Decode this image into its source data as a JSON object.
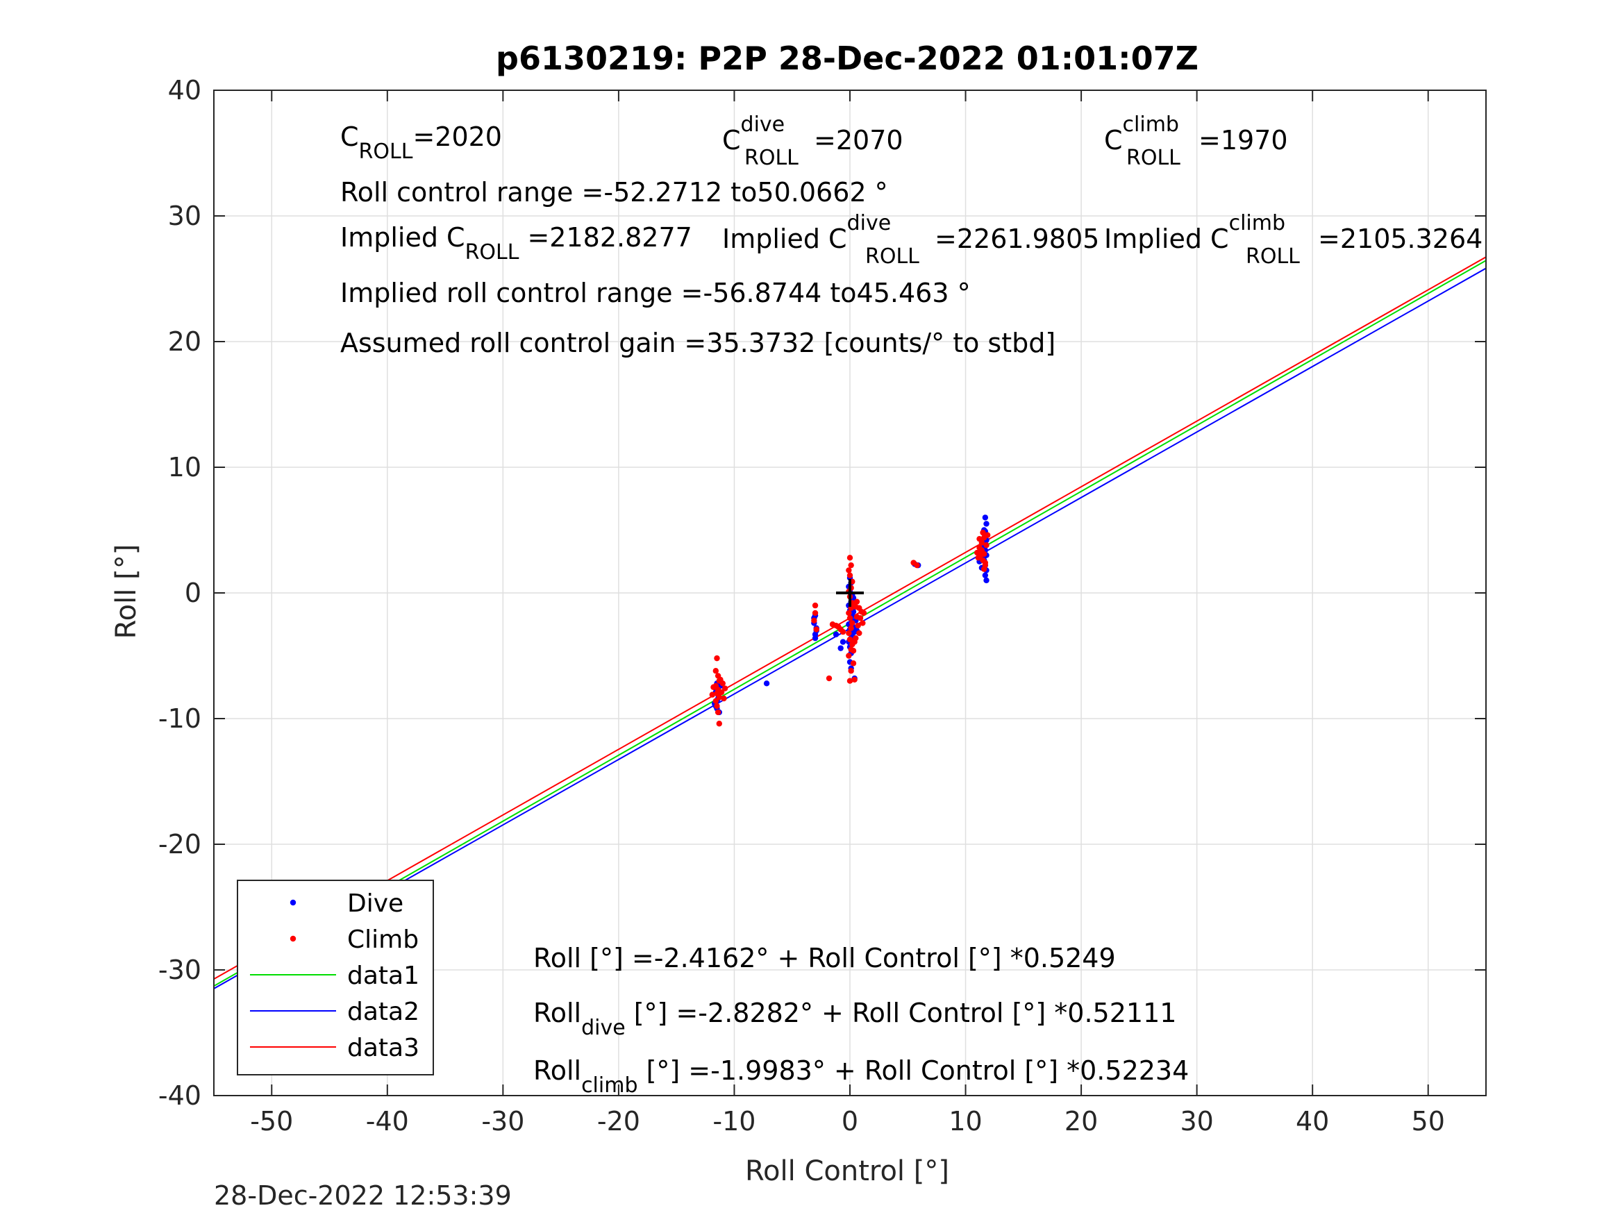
{
  "chart_data": {
    "type": "scatter",
    "title": "p6130219: P2P 28-Dec-2022 01:01:07Z",
    "xlabel": "Roll Control [°]",
    "ylabel": "Roll [°]",
    "xlim": [
      -55,
      55
    ],
    "ylim": [
      -40,
      40
    ],
    "xticks": [
      -50,
      -40,
      -30,
      -20,
      -10,
      0,
      10,
      20,
      30,
      40,
      50
    ],
    "yticks": [
      -40,
      -30,
      -20,
      -10,
      0,
      10,
      20,
      30,
      40
    ],
    "grid": true,
    "legend_position": "bottom-left",
    "timestamp": "28-Dec-2022 12:53:39",
    "legend": [
      {
        "label": "Dive",
        "kind": "marker",
        "color": "#0000ff"
      },
      {
        "label": "Climb",
        "kind": "marker",
        "color": "#ff0000"
      },
      {
        "label": "data1",
        "kind": "line",
        "color": "#00dd00"
      },
      {
        "label": "data2",
        "kind": "line",
        "color": "#0000ff"
      },
      {
        "label": "data3",
        "kind": "line",
        "color": "#ff0000"
      }
    ],
    "annotations_top": {
      "croll": {
        "base": "C",
        "sub": "ROLL",
        "sup": "",
        "value": "=2020"
      },
      "croll_dive": {
        "base": "C",
        "sub": "ROLL",
        "sup": "dive",
        "value": "=2070"
      },
      "croll_climb": {
        "base": "C",
        "sub": "ROLL",
        "sup": "climb",
        "value": "=1970"
      },
      "range": "Roll control range =-52.2712 to50.0662 °",
      "implied_croll": {
        "prefix": "Implied C",
        "sub": "ROLL",
        "sup": "",
        "value": "=2182.8277"
      },
      "implied_croll_dive": {
        "prefix": "Implied C",
        "sub": "ROLL",
        "sup": "dive",
        "value": "=2261.9805"
      },
      "implied_croll_climb": {
        "prefix": "Implied C",
        "sub": "ROLL",
        "sup": "climb",
        "value": "=2105.3264"
      },
      "implied_range": "Implied roll control range =-56.8744 to45.463 °",
      "gain": "Assumed roll control gain =35.3732 [counts/° to stbd]"
    },
    "annotations_bottom": {
      "fit_all": {
        "base": "Roll",
        "sub": "",
        "rest": " [°] =-2.4162° + Roll Control [°] *0.5249"
      },
      "fit_dive": {
        "base": "Roll",
        "sub": "dive",
        "rest": " [°] =-2.8282° + Roll Control [°] *0.52111"
      },
      "fit_climb": {
        "base": "Roll",
        "sub": "climb",
        "rest": " [°] =-1.9983° + Roll Control [°] *0.52234"
      }
    },
    "lines": [
      {
        "name": "data1",
        "color": "#00dd00",
        "intercept": -2.4162,
        "slope": 0.5249
      },
      {
        "name": "data2",
        "color": "#0000ff",
        "intercept": -2.8282,
        "slope": 0.52111
      },
      {
        "name": "data3",
        "color": "#ff0000",
        "intercept": -1.9983,
        "slope": 0.52234
      }
    ],
    "center_marker": {
      "x": 0,
      "y": 0,
      "color": "#000000"
    },
    "series": [
      {
        "name": "Dive",
        "color": "#0000ff",
        "points": [
          [
            -11.5,
            -7.2
          ],
          [
            -11.6,
            -7.9
          ],
          [
            -11.4,
            -8.4
          ],
          [
            -11.7,
            -8.8
          ],
          [
            -11.5,
            -9.2
          ],
          [
            -11.3,
            -9.5
          ],
          [
            -11.6,
            -7.6
          ],
          [
            -11.4,
            -8.1
          ],
          [
            -11.2,
            -7.4
          ],
          [
            -11.5,
            -8.6
          ],
          [
            -11.6,
            -9.0
          ],
          [
            -11.4,
            -7.8
          ],
          [
            -7.2,
            -7.2
          ],
          [
            -3.0,
            -1.8
          ],
          [
            -3.1,
            -2.4
          ],
          [
            -2.9,
            -3.0
          ],
          [
            -3.0,
            -3.6
          ],
          [
            -3.1,
            -2.0
          ],
          [
            -2.9,
            -2.8
          ],
          [
            -3.0,
            -3.3
          ],
          [
            -1.2,
            -3.3
          ],
          [
            -0.8,
            -4.4
          ],
          [
            -0.6,
            -3.9
          ],
          [
            0.0,
            1.2
          ],
          [
            0.1,
            0.8
          ],
          [
            -0.1,
            0.5
          ],
          [
            0.0,
            0.2
          ],
          [
            0.2,
            -0.2
          ],
          [
            0.1,
            -0.7
          ],
          [
            -0.1,
            -1.0
          ],
          [
            0.0,
            -1.4
          ],
          [
            0.2,
            -1.8
          ],
          [
            0.1,
            -2.1
          ],
          [
            -0.1,
            -2.5
          ],
          [
            0.0,
            -2.9
          ],
          [
            0.2,
            -3.3
          ],
          [
            0.1,
            -3.6
          ],
          [
            -0.1,
            -3.9
          ],
          [
            0.0,
            -4.3
          ],
          [
            0.1,
            -4.8
          ],
          [
            0.0,
            -5.5
          ],
          [
            0.1,
            -6.0
          ],
          [
            0.3,
            -2.7
          ],
          [
            0.4,
            -3.1
          ],
          [
            0.3,
            -1.5
          ],
          [
            0.5,
            -2.2
          ],
          [
            0.6,
            -3.0
          ],
          [
            0.4,
            -6.8
          ],
          [
            0.2,
            -1.2
          ],
          [
            0.3,
            -0.4
          ],
          [
            5.9,
            2.2
          ],
          [
            5.6,
            2.3
          ],
          [
            11.7,
            6.0
          ],
          [
            11.8,
            5.5
          ],
          [
            11.6,
            5.0
          ],
          [
            11.7,
            4.6
          ],
          [
            11.8,
            4.2
          ],
          [
            11.6,
            3.8
          ],
          [
            11.7,
            3.4
          ],
          [
            11.8,
            3.0
          ],
          [
            11.6,
            2.6
          ],
          [
            11.7,
            2.2
          ],
          [
            11.8,
            1.8
          ],
          [
            11.7,
            1.4
          ],
          [
            11.8,
            1.0
          ],
          [
            11.6,
            2.9
          ],
          [
            11.7,
            3.9
          ],
          [
            11.2,
            2.5
          ],
          [
            11.4,
            2.0
          ],
          [
            11.7,
            4.9
          ]
        ]
      },
      {
        "name": "Climb",
        "color": "#ff0000",
        "points": [
          [
            -11.5,
            -5.2
          ],
          [
            -11.6,
            -6.2
          ],
          [
            -11.4,
            -6.6
          ],
          [
            -11.3,
            -7.0
          ],
          [
            -11.6,
            -7.4
          ],
          [
            -11.4,
            -7.7
          ],
          [
            -11.5,
            -8.0
          ],
          [
            -11.3,
            -8.3
          ],
          [
            -11.6,
            -8.6
          ],
          [
            -11.5,
            -9.0
          ],
          [
            -11.4,
            -9.5
          ],
          [
            -11.3,
            -10.4
          ],
          [
            -11.0,
            -7.2
          ],
          [
            -11.1,
            -7.9
          ],
          [
            -10.8,
            -7.6
          ],
          [
            -11.9,
            -8.1
          ],
          [
            -11.8,
            -7.5
          ],
          [
            -10.9,
            -8.4
          ],
          [
            -11.2,
            -6.9
          ],
          [
            -3.0,
            -1.0
          ],
          [
            -3.0,
            -1.6
          ],
          [
            -3.1,
            -2.2
          ],
          [
            -2.9,
            -2.9
          ],
          [
            -1.8,
            -6.8
          ],
          [
            -1.5,
            -2.5
          ],
          [
            -1.2,
            -2.6
          ],
          [
            -1.0,
            -2.7
          ],
          [
            -0.8,
            -2.9
          ],
          [
            -0.6,
            -3.1
          ],
          [
            0.0,
            2.8
          ],
          [
            0.1,
            2.2
          ],
          [
            -0.1,
            1.8
          ],
          [
            0.0,
            1.4
          ],
          [
            0.2,
            0.9
          ],
          [
            0.1,
            0.4
          ],
          [
            -0.1,
            0.1
          ],
          [
            0.0,
            -0.3
          ],
          [
            0.2,
            -0.8
          ],
          [
            0.1,
            -1.2
          ],
          [
            -0.1,
            -1.6
          ],
          [
            0.0,
            -2.0
          ],
          [
            0.2,
            -2.4
          ],
          [
            0.1,
            -2.8
          ],
          [
            -0.1,
            -3.2
          ],
          [
            0.0,
            -3.7
          ],
          [
            0.2,
            -4.1
          ],
          [
            0.1,
            -4.5
          ],
          [
            -0.1,
            -5.0
          ],
          [
            0.3,
            -5.6
          ],
          [
            0.1,
            -6.2
          ],
          [
            0.0,
            -7.0
          ],
          [
            0.4,
            -6.9
          ],
          [
            0.5,
            -1.1
          ],
          [
            0.6,
            -1.9
          ],
          [
            0.7,
            -2.6
          ],
          [
            0.8,
            -3.2
          ],
          [
            0.9,
            -2.0
          ],
          [
            1.0,
            -1.5
          ],
          [
            1.1,
            -2.4
          ],
          [
            0.5,
            -3.6
          ],
          [
            0.6,
            -0.7
          ],
          [
            0.3,
            -4.6
          ],
          [
            0.4,
            -3.9
          ],
          [
            1.2,
            -1.6
          ],
          [
            0.8,
            -1.2
          ],
          [
            5.5,
            2.4
          ],
          [
            5.8,
            2.2
          ],
          [
            11.0,
            3.2
          ],
          [
            11.2,
            3.6
          ],
          [
            11.4,
            4.0
          ],
          [
            11.6,
            4.4
          ],
          [
            11.8,
            3.8
          ],
          [
            11.3,
            3.0
          ],
          [
            11.5,
            2.6
          ],
          [
            11.7,
            2.2
          ],
          [
            11.6,
            3.1
          ],
          [
            11.9,
            4.6
          ],
          [
            11.2,
            4.3
          ],
          [
            11.1,
            2.8
          ],
          [
            11.6,
            1.9
          ],
          [
            11.7,
            2.4
          ],
          [
            11.5,
            4.8
          ],
          [
            11.4,
            3.4
          ]
        ]
      }
    ]
  }
}
